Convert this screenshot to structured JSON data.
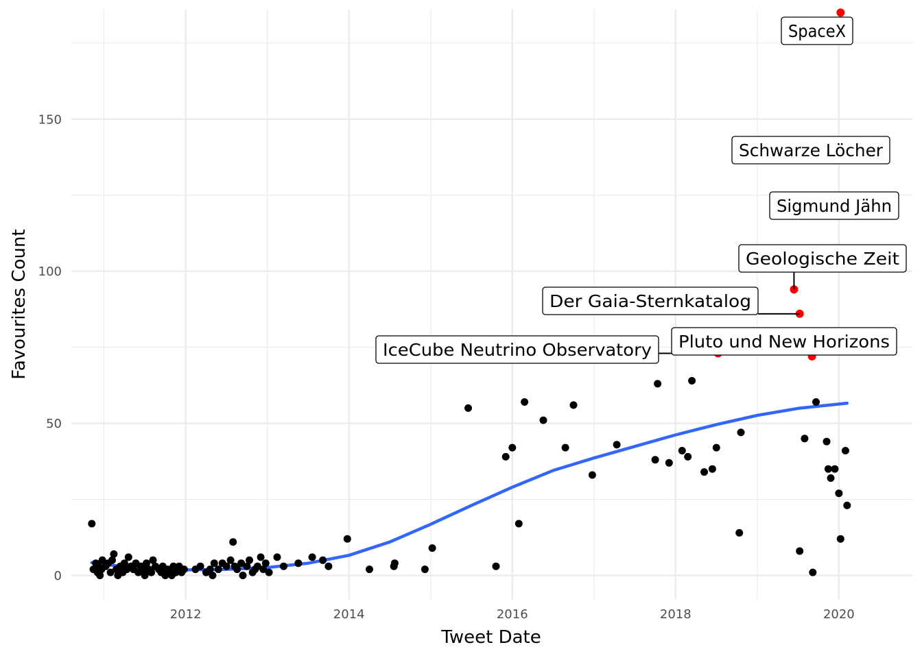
{
  "chart_data": {
    "type": "scatter",
    "title": "",
    "xlabel": "Tweet Date",
    "ylabel": "Favourites Count",
    "xlim": [
      2010.6,
      2020.9
    ],
    "ylim": [
      -8,
      186
    ],
    "x_ticks": [
      "2012",
      "2014",
      "2016",
      "2018",
      "2020"
    ],
    "y_ticks": [
      "0",
      "50",
      "100",
      "150"
    ],
    "grid": true,
    "legend": "none",
    "colors": {
      "points": "#000000",
      "highlight": "#ff0000",
      "trend": "#3366ff",
      "grid": "#ebebeb"
    },
    "points": [
      [
        2010.85,
        17
      ],
      [
        2010.87,
        2
      ],
      [
        2010.9,
        4
      ],
      [
        2010.92,
        1
      ],
      [
        2010.93,
        3
      ],
      [
        2010.95,
        0
      ],
      [
        2010.97,
        2
      ],
      [
        2010.98,
        5
      ],
      [
        2011.02,
        3
      ],
      [
        2011.05,
        4
      ],
      [
        2011.08,
        1
      ],
      [
        2011.1,
        5
      ],
      [
        2011.12,
        7
      ],
      [
        2011.15,
        2
      ],
      [
        2011.17,
        0
      ],
      [
        2011.2,
        3
      ],
      [
        2011.23,
        1
      ],
      [
        2011.25,
        4
      ],
      [
        2011.28,
        2
      ],
      [
        2011.3,
        6
      ],
      [
        2011.33,
        3
      ],
      [
        2011.36,
        2
      ],
      [
        2011.39,
        4
      ],
      [
        2011.42,
        1
      ],
      [
        2011.45,
        3
      ],
      [
        2011.48,
        2
      ],
      [
        2011.5,
        0
      ],
      [
        2011.52,
        4
      ],
      [
        2011.55,
        2
      ],
      [
        2011.58,
        1
      ],
      [
        2011.6,
        5
      ],
      [
        2011.63,
        3
      ],
      [
        2011.67,
        2
      ],
      [
        2011.7,
        1
      ],
      [
        2011.72,
        3
      ],
      [
        2011.75,
        0
      ],
      [
        2011.78,
        2
      ],
      [
        2011.8,
        1
      ],
      [
        2011.83,
        0
      ],
      [
        2011.85,
        3
      ],
      [
        2011.88,
        1
      ],
      [
        2011.9,
        2
      ],
      [
        2011.92,
        3
      ],
      [
        2011.95,
        1
      ],
      [
        2011.98,
        2
      ],
      [
        2012.12,
        2
      ],
      [
        2012.18,
        3
      ],
      [
        2012.25,
        1
      ],
      [
        2012.3,
        2
      ],
      [
        2012.33,
        0
      ],
      [
        2012.35,
        4
      ],
      [
        2012.4,
        2
      ],
      [
        2012.45,
        4
      ],
      [
        2012.5,
        3
      ],
      [
        2012.55,
        5
      ],
      [
        2012.58,
        11
      ],
      [
        2012.6,
        3
      ],
      [
        2012.63,
        2
      ],
      [
        2012.68,
        4
      ],
      [
        2012.7,
        0
      ],
      [
        2012.75,
        3
      ],
      [
        2012.78,
        5
      ],
      [
        2012.82,
        1
      ],
      [
        2012.85,
        2
      ],
      [
        2012.88,
        3
      ],
      [
        2012.92,
        6
      ],
      [
        2012.95,
        2
      ],
      [
        2012.98,
        4
      ],
      [
        2013.02,
        1
      ],
      [
        2013.12,
        6
      ],
      [
        2013.2,
        3
      ],
      [
        2013.38,
        4
      ],
      [
        2013.55,
        6
      ],
      [
        2013.68,
        5
      ],
      [
        2013.75,
        3
      ],
      [
        2013.98,
        12
      ],
      [
        2014.25,
        2
      ],
      [
        2014.55,
        3
      ],
      [
        2014.56,
        4
      ],
      [
        2014.93,
        2
      ],
      [
        2015.02,
        9
      ],
      [
        2015.46,
        55
      ],
      [
        2015.8,
        3
      ],
      [
        2015.92,
        39
      ],
      [
        2016.0,
        42
      ],
      [
        2016.08,
        17
      ],
      [
        2016.15,
        57
      ],
      [
        2016.38,
        51
      ],
      [
        2016.65,
        42
      ],
      [
        2016.75,
        56
      ],
      [
        2016.98,
        33
      ],
      [
        2017.28,
        43
      ],
      [
        2017.75,
        38
      ],
      [
        2017.78,
        63
      ],
      [
        2017.92,
        37
      ],
      [
        2018.08,
        41
      ],
      [
        2018.15,
        39
      ],
      [
        2018.2,
        64
      ],
      [
        2018.35,
        34
      ],
      [
        2018.45,
        35
      ],
      [
        2018.5,
        42
      ],
      [
        2018.78,
        14
      ],
      [
        2018.8,
        47
      ],
      [
        2019.52,
        8
      ],
      [
        2019.58,
        45
      ],
      [
        2019.68,
        1
      ],
      [
        2019.72,
        57
      ],
      [
        2019.85,
        44
      ],
      [
        2019.87,
        35
      ],
      [
        2019.9,
        32
      ],
      [
        2019.95,
        35
      ],
      [
        2020.0,
        27
      ],
      [
        2020.02,
        12
      ],
      [
        2020.08,
        41
      ],
      [
        2020.1,
        23
      ]
    ],
    "highlighted": [
      {
        "x": 2020.02,
        "y": 185,
        "label": "SpaceX"
      },
      {
        "x": 2019.35,
        "y": 138,
        "label": "Schwarze Löcher"
      },
      {
        "x": 2019.72,
        "y": 119,
        "label": "Sigmund Jähn"
      },
      {
        "x": 2019.45,
        "y": 94,
        "label": "Geologische Zeit"
      },
      {
        "x": 2019.52,
        "y": 86,
        "label": "Der Gaia-Sternkatalog"
      },
      {
        "x": 2018.52,
        "y": 73,
        "label": "IceCube Neutrino Observatory"
      },
      {
        "x": 2019.67,
        "y": 72,
        "label": "Pluto und New Horizons"
      }
    ],
    "trend": [
      [
        2010.85,
        4.2
      ],
      [
        2011.2,
        3.0
      ],
      [
        2011.6,
        2.2
      ],
      [
        2012.0,
        1.8
      ],
      [
        2012.5,
        2.0
      ],
      [
        2013.0,
        2.6
      ],
      [
        2013.5,
        4.0
      ],
      [
        2014.0,
        6.6
      ],
      [
        2014.5,
        11.0
      ],
      [
        2015.0,
        16.8
      ],
      [
        2015.5,
        23.0
      ],
      [
        2016.0,
        29.0
      ],
      [
        2016.5,
        34.5
      ],
      [
        2017.0,
        38.6
      ],
      [
        2017.5,
        42.4
      ],
      [
        2018.0,
        46.2
      ],
      [
        2018.5,
        49.6
      ],
      [
        2019.0,
        52.6
      ],
      [
        2019.5,
        54.9
      ],
      [
        2020.1,
        56.6
      ]
    ]
  }
}
